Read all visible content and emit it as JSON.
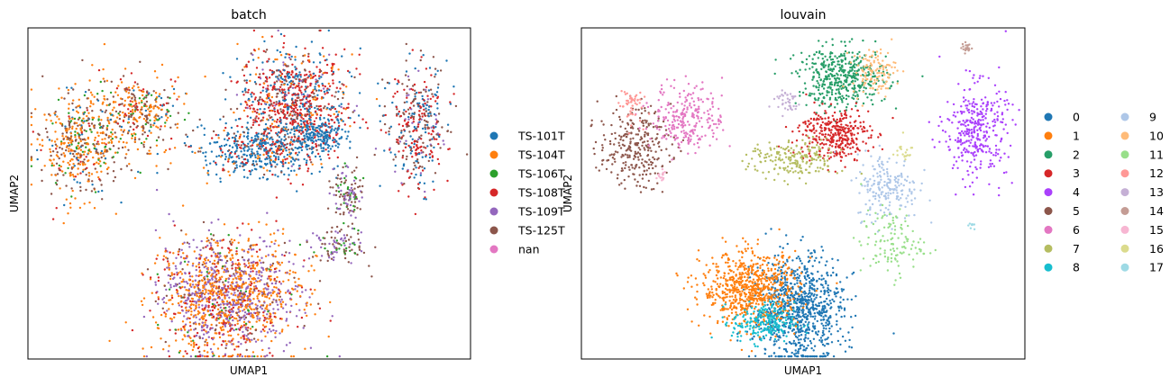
{
  "chart_data": [
    {
      "type": "scatter",
      "title": "batch",
      "xlabel": "UMAP1",
      "ylabel": "UMAP2",
      "xlim": [
        0,
        100
      ],
      "ylim": [
        0,
        100
      ],
      "x_ticks": "none",
      "y_ticks": "none",
      "grid": false,
      "legend_position": "right",
      "series": [
        {
          "name": "TS-101T",
          "color": "#1f77b4"
        },
        {
          "name": "TS-104T",
          "color": "#ff7f0e"
        },
        {
          "name": "TS-106T",
          "color": "#2ca02c"
        },
        {
          "name": "TS-108T",
          "color": "#d62728"
        },
        {
          "name": "TS-109T",
          "color": "#9467bd"
        },
        {
          "name": "TS-125T",
          "color": "#8c564b"
        },
        {
          "name": "nan",
          "color": "#e377c2"
        }
      ],
      "clusters": [
        {
          "x": 11,
          "y": 65,
          "sx": 5,
          "sy": 8,
          "n": 500,
          "mix": {
            "TS-104T": 0.45,
            "TS-125T": 0.3,
            "TS-106T": 0.1,
            "TS-108T": 0.05,
            "TS-101T": 0.1
          }
        },
        {
          "x": 25,
          "y": 74,
          "sx": 5,
          "sy": 6,
          "n": 350,
          "mix": {
            "TS-104T": 0.4,
            "TS-125T": 0.3,
            "TS-106T": 0.15,
            "TS-108T": 0.1,
            "TS-101T": 0.05
          }
        },
        {
          "x": 60,
          "y": 78,
          "sx": 6,
          "sy": 8,
          "n": 900,
          "mix": {
            "TS-108T": 0.45,
            "TS-101T": 0.25,
            "TS-125T": 0.15,
            "TS-104T": 0.1,
            "TS-109T": 0.05
          }
        },
        {
          "x": 53,
          "y": 63,
          "sx": 7,
          "sy": 4,
          "n": 500,
          "mix": {
            "TS-101T": 0.65,
            "TS-108T": 0.15,
            "TS-125T": 0.1,
            "TS-104T": 0.1
          }
        },
        {
          "x": 66,
          "y": 68,
          "sx": 3,
          "sy": 2.5,
          "n": 200,
          "mix": {
            "TS-101T": 0.85,
            "TS-108T": 0.15
          }
        },
        {
          "x": 88,
          "y": 70,
          "sx": 3.5,
          "sy": 9,
          "n": 400,
          "mix": {
            "TS-108T": 0.35,
            "TS-101T": 0.3,
            "TS-125T": 0.25,
            "TS-109T": 0.1
          }
        },
        {
          "x": 45,
          "y": 19,
          "sx": 8,
          "sy": 9,
          "n": 1600,
          "mix": {
            "TS-104T": 0.4,
            "TS-109T": 0.35,
            "TS-108T": 0.15,
            "TS-125T": 0.07,
            "TS-106T": 0.03
          }
        },
        {
          "x": 72,
          "y": 50,
          "sx": 1.8,
          "sy": 4,
          "n": 130,
          "mix": {
            "TS-125T": 0.45,
            "TS-109T": 0.3,
            "TS-106T": 0.25
          }
        },
        {
          "x": 70,
          "y": 34,
          "sx": 3,
          "sy": 3,
          "n": 110,
          "mix": {
            "TS-125T": 0.45,
            "TS-109T": 0.35,
            "TS-106T": 0.2
          }
        }
      ]
    },
    {
      "type": "scatter",
      "title": "louvain",
      "xlabel": "UMAP1",
      "ylabel": "UMAP2",
      "xlim": [
        0,
        100
      ],
      "ylim": [
        0,
        100
      ],
      "x_ticks": "none",
      "y_ticks": "none",
      "grid": false,
      "legend_position": "right",
      "legend_columns": 2,
      "series": [
        {
          "name": "0",
          "color": "#1f77b4"
        },
        {
          "name": "1",
          "color": "#ff7f0e"
        },
        {
          "name": "2",
          "color": "#279e68"
        },
        {
          "name": "3",
          "color": "#d62728"
        },
        {
          "name": "4",
          "color": "#aa40fc"
        },
        {
          "name": "5",
          "color": "#8c564b"
        },
        {
          "name": "6",
          "color": "#e377c2"
        },
        {
          "name": "7",
          "color": "#b5bd61"
        },
        {
          "name": "8",
          "color": "#17becf"
        },
        {
          "name": "9",
          "color": "#aec7e8"
        },
        {
          "name": "10",
          "color": "#ffbb78"
        },
        {
          "name": "11",
          "color": "#98df8a"
        },
        {
          "name": "12",
          "color": "#ff9896"
        },
        {
          "name": "13",
          "color": "#c5b0d5"
        },
        {
          "name": "14",
          "color": "#c49c94"
        },
        {
          "name": "15",
          "color": "#f7b6d2"
        },
        {
          "name": "16",
          "color": "#dbdb8d"
        },
        {
          "name": "17",
          "color": "#9edae5"
        }
      ],
      "clusters": [
        {
          "label": "0",
          "x": 49,
          "y": 15,
          "sx": 5,
          "sy": 8,
          "n": 900
        },
        {
          "label": "1",
          "x": 38,
          "y": 21,
          "sx": 5.5,
          "sy": 5.5,
          "n": 700
        },
        {
          "label": "2",
          "x": 59,
          "y": 85,
          "sx": 5,
          "sy": 4.5,
          "n": 450
        },
        {
          "label": "3",
          "x": 57,
          "y": 68,
          "sx": 4,
          "sy": 4,
          "n": 350
        },
        {
          "label": "4",
          "x": 89,
          "y": 69,
          "sx": 3.5,
          "sy": 7,
          "n": 350
        },
        {
          "label": "5",
          "x": 12,
          "y": 64,
          "sx": 4,
          "sy": 6,
          "n": 280
        },
        {
          "label": "6",
          "x": 24,
          "y": 73,
          "sx": 4,
          "sy": 5,
          "n": 250
        },
        {
          "label": "7",
          "x": 48,
          "y": 60,
          "sx": 5,
          "sy": 3,
          "n": 200
        },
        {
          "label": "8",
          "x": 41,
          "y": 11,
          "sx": 3.5,
          "sy": 3,
          "n": 220
        },
        {
          "label": "9",
          "x": 69,
          "y": 52,
          "sx": 3.5,
          "sy": 5,
          "n": 200
        },
        {
          "label": "10",
          "x": 66,
          "y": 87,
          "sx": 2.5,
          "sy": 3.5,
          "n": 120
        },
        {
          "label": "11",
          "x": 70,
          "y": 35,
          "sx": 3.5,
          "sy": 5,
          "n": 120
        },
        {
          "label": "12",
          "x": 11,
          "y": 77,
          "sx": 1.3,
          "sy": 3,
          "n": 50
        },
        {
          "label": "13",
          "x": 46,
          "y": 78,
          "sx": 1.8,
          "sy": 2,
          "n": 40
        },
        {
          "label": "14",
          "x": 87,
          "y": 94,
          "sx": 0.6,
          "sy": 0.8,
          "n": 20
        },
        {
          "label": "15",
          "x": 18,
          "y": 55,
          "sx": 0.6,
          "sy": 1.2,
          "n": 15
        },
        {
          "label": "16",
          "x": 72,
          "y": 63,
          "sx": 1.5,
          "sy": 1.5,
          "n": 20
        },
        {
          "label": "17",
          "x": 88,
          "y": 40,
          "sx": 0.4,
          "sy": 0.5,
          "n": 8
        }
      ]
    }
  ]
}
